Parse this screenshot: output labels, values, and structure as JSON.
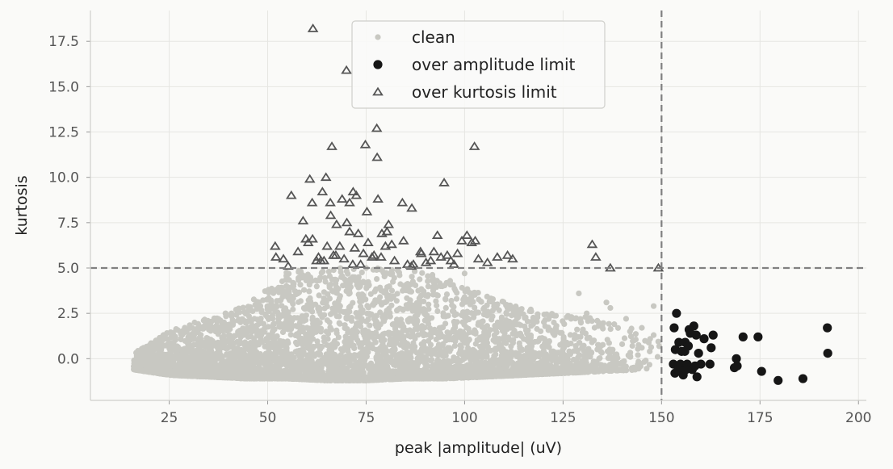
{
  "chart_data": {
    "type": "scatter",
    "title": "",
    "xlabel": "peak |amplitude| (uV)",
    "ylabel": "kurtosis",
    "xlim": [
      5,
      202
    ],
    "ylim": [
      -2.3,
      19.2
    ],
    "xticks": [
      25,
      50,
      75,
      100,
      125,
      150,
      175,
      200
    ],
    "yticks": [
      0.0,
      2.5,
      5.0,
      7.5,
      10.0,
      12.5,
      15.0,
      17.5
    ],
    "xtick_labels": [
      "25",
      "50",
      "75",
      "100",
      "125",
      "150",
      "175",
      "200"
    ],
    "ytick_labels": [
      "0.0",
      "2.5",
      "5.0",
      "7.5",
      "10.0",
      "12.5",
      "15.0",
      "17.5"
    ],
    "grid": true,
    "legend_position": "top-center",
    "thresholds": {
      "amplitude_limit": 150,
      "kurtosis_limit": 5.0
    },
    "colors": {
      "clean": "#c8c8c2",
      "amplitude": "#161616",
      "kurtosis_edge": "#555555",
      "threshold_line": "#808080"
    },
    "series": [
      {
        "name": "clean",
        "marker": "dot",
        "note_points": "dense cloud, approx. several thousand points; bulk values listed as representative samples",
        "envelope": [
          [
            16,
            -0.6,
            0.3
          ],
          [
            25,
            -0.9,
            1.5
          ],
          [
            35,
            -1.0,
            2.3
          ],
          [
            45,
            -1.1,
            3.0
          ],
          [
            55,
            -1.1,
            4.8
          ],
          [
            65,
            -1.2,
            5.0
          ],
          [
            75,
            -1.2,
            5.0
          ],
          [
            85,
            -1.1,
            5.0
          ],
          [
            95,
            -1.1,
            4.5
          ],
          [
            105,
            -1.0,
            3.5
          ],
          [
            115,
            -0.9,
            2.8
          ],
          [
            125,
            -0.8,
            2.5
          ],
          [
            135,
            -0.7,
            2.2
          ],
          [
            145,
            -0.6,
            1.5
          ],
          [
            150,
            -0.5,
            1.2
          ]
        ],
        "x": [
          138,
          140,
          142,
          143,
          144,
          145,
          146,
          147,
          148,
          149,
          137,
          141,
          131,
          129,
          136,
          148,
          145,
          140,
          75,
          100,
          53,
          60
        ],
        "y": [
          1.9,
          0.8,
          1.5,
          1.0,
          0.2,
          0.6,
          -0.1,
          0.4,
          1.3,
          0.1,
          2.8,
          2.2,
          2.5,
          3.6,
          3.1,
          2.9,
          1.7,
          -0.2,
          5.0,
          4.7,
          3.2,
          4.5
        ]
      },
      {
        "name": "over amplitude limit",
        "marker": "filled-circle",
        "x": [
          153.8,
          153.2,
          154.4,
          153.5,
          155.1,
          156.0,
          157.3,
          158.2,
          157.0,
          155.9,
          156.8,
          158.8,
          159.4,
          160.0,
          162.3,
          163.1,
          162.6,
          168.5,
          169.2,
          169.0,
          170.7,
          174.5,
          175.4,
          179.6,
          185.9,
          192.1,
          192.2,
          153.0,
          154.8,
          156.5,
          157.8,
          159.0,
          155.5,
          153.4,
          158.5,
          156.2,
          160.8,
          154.2
        ],
        "y": [
          2.5,
          1.7,
          0.9,
          0.5,
          0.4,
          0.9,
          1.4,
          1.8,
          1.6,
          0.4,
          0.7,
          1.3,
          0.3,
          -0.3,
          -0.3,
          1.3,
          0.6,
          -0.5,
          -0.4,
          0.0,
          1.2,
          1.2,
          -0.7,
          -1.2,
          -1.1,
          1.7,
          0.3,
          -0.3,
          -0.3,
          -0.3,
          -0.6,
          -1.0,
          -0.9,
          -0.8,
          -0.4,
          -0.6,
          1.1,
          -0.6
        ]
      },
      {
        "name": "over kurtosis limit",
        "marker": "open-triangle",
        "x": [
          61.5,
          70.0,
          77.7,
          74.8,
          77.8,
          66.3,
          102.5,
          60.7,
          64.8,
          56.0,
          61.3,
          63.9,
          71.7,
          72.5,
          78.0,
          65.9,
          59.0,
          68.9,
          70.8,
          75.2,
          66.0,
          67.5,
          70.1,
          80.7,
          84.2,
          79.0,
          86.6,
          93.1,
          99.3,
          102.7,
          100.6,
          94.8,
          132.4,
          133.3,
          137.0,
          149.2,
          51.9,
          52.1,
          55.2,
          57.7,
          59.7,
          61.4,
          63.5,
          65.1,
          66.7,
          68.3,
          70.8,
          73.0,
          75.5,
          77.0,
          79.9,
          82.2,
          84.5,
          86.5,
          88.8,
          90.2,
          92.2,
          94.0,
          96.5,
          98.2,
          103.5,
          105.8,
          108.3,
          110.9,
          112.2,
          54.0,
          60.3,
          62.9,
          69.4,
          72.1,
          74.3,
          76.5,
          78.8,
          81.5,
          85.5,
          89.0,
          95.6,
          97.3,
          101.8,
          62.4,
          64.3,
          67.3,
          71.6,
          73.6,
          87.0,
          91.4,
          80.3
        ],
        "y": [
          18.2,
          15.9,
          12.7,
          11.8,
          11.1,
          11.7,
          11.7,
          9.9,
          10.0,
          9.0,
          8.6,
          9.2,
          9.2,
          9.0,
          8.8,
          8.6,
          7.6,
          8.8,
          8.6,
          8.1,
          7.9,
          7.4,
          7.5,
          7.4,
          8.6,
          6.9,
          8.3,
          6.8,
          6.5,
          6.5,
          6.8,
          9.7,
          6.3,
          5.6,
          5.0,
          5.0,
          6.2,
          5.6,
          5.1,
          5.9,
          6.6,
          6.6,
          5.4,
          6.2,
          5.7,
          6.2,
          7.0,
          6.9,
          6.4,
          5.7,
          6.2,
          5.4,
          6.5,
          5.1,
          5.9,
          5.3,
          5.9,
          5.6,
          5.4,
          5.8,
          5.5,
          5.3,
          5.6,
          5.7,
          5.5,
          5.5,
          6.4,
          5.6,
          5.5,
          6.1,
          5.8,
          5.6,
          5.6,
          6.3,
          5.2,
          5.8,
          5.7,
          5.2,
          6.4,
          5.4,
          5.4,
          5.7,
          5.2,
          5.2,
          5.2,
          5.4,
          7.0
        ]
      }
    ]
  }
}
